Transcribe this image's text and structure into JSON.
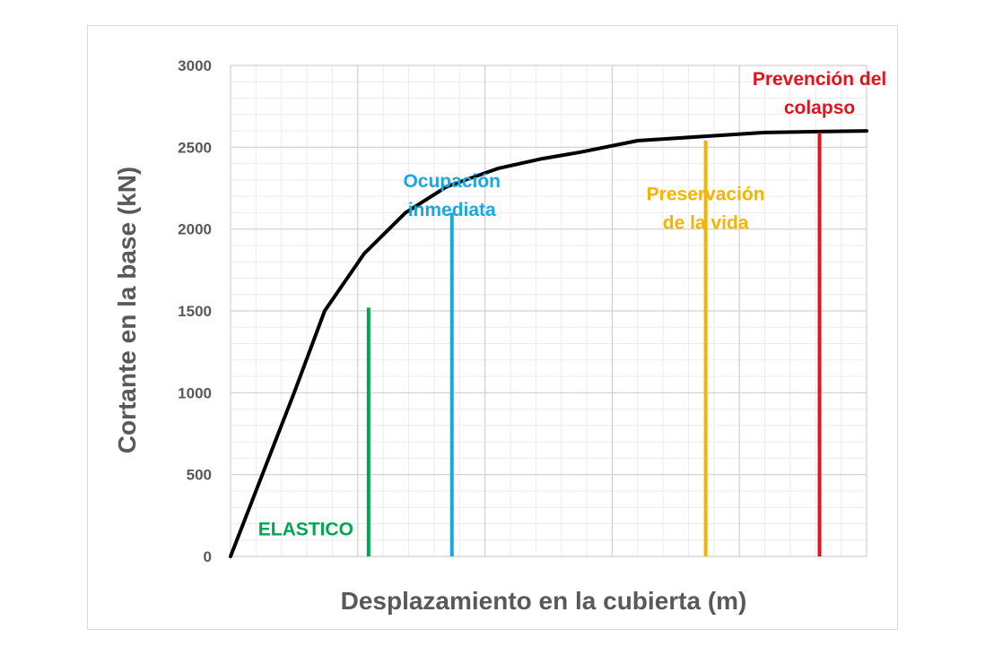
{
  "chart_data": {
    "type": "line",
    "title": "",
    "xlabel": "Desplazamiento en la cubierta (m)",
    "ylabel": "Cortante en la base (kN)",
    "ylim": [
      0,
      3000
    ],
    "yticks": [
      "0",
      "500",
      "1000",
      "1500",
      "2000",
      "2500",
      "3000"
    ],
    "xlim": [
      0,
      1
    ],
    "x_tick_labels_shown": false,
    "grid": true,
    "series": [
      {
        "color": "#000000",
        "x": [
          0.0,
          0.05,
          0.1,
          0.148,
          0.21,
          0.275,
          0.34,
          0.42,
          0.49,
          0.55,
          0.64,
          0.76,
          0.84,
          0.91,
          1.0
        ],
        "y": [
          0,
          500,
          1000,
          1500,
          1850,
          2100,
          2260,
          2370,
          2430,
          2470,
          2540,
          2570,
          2590,
          2595,
          2600
        ]
      }
    ],
    "markers": [
      {
        "x": 0.217,
        "y": 1520,
        "label_lines": [
          "ELASTICO"
        ],
        "label_y": 130,
        "color": "#00a651"
      },
      {
        "x": 0.348,
        "y": 2100,
        "label_lines": [
          "Ocupación",
          "inmediata"
        ],
        "label_y": 2255,
        "color": "#1aa7e0"
      },
      {
        "x": 0.747,
        "y": 2540,
        "label_lines": [
          "Preservación",
          "de la vida"
        ],
        "label_y": 2175,
        "color": "#f4b400"
      },
      {
        "x": 0.926,
        "y": 2590,
        "label_lines": [
          "Prevención del",
          "colapso"
        ],
        "label_y": 2880,
        "color": "#e3121b"
      }
    ]
  }
}
